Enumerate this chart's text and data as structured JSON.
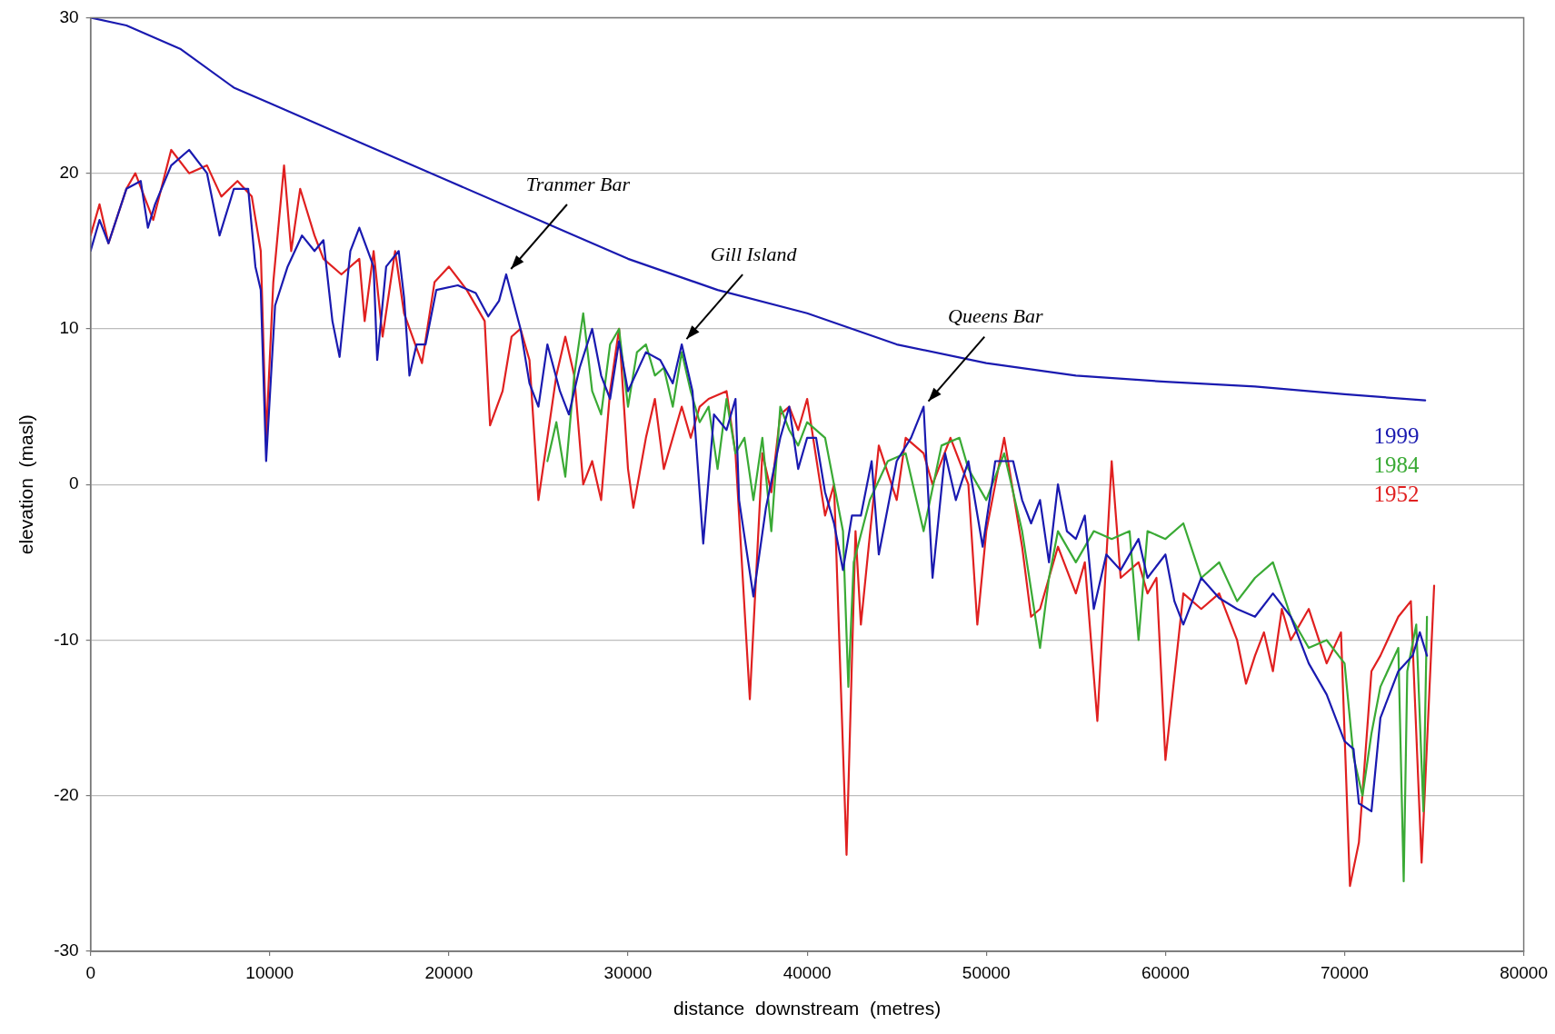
{
  "chart_data": {
    "type": "line",
    "xlabel": "distance  downstream  (metres)",
    "ylabel": "elevation  (masl)",
    "xlim": [
      0,
      80000
    ],
    "xticks": [
      0,
      10000,
      20000,
      30000,
      40000,
      50000,
      60000,
      70000,
      80000
    ],
    "ylim": [
      -30,
      30
    ],
    "yticks": [
      -30,
      -20,
      -10,
      0,
      10,
      20,
      30
    ],
    "grid": "y",
    "legend": false,
    "marker": "none",
    "line_style": "solid",
    "annotations": [
      {
        "text": "Tranmer Bar",
        "x": 23200,
        "y": 13.5
      },
      {
        "text": "Gill Island",
        "x": 33000,
        "y": 9
      },
      {
        "text": "Queens Bar",
        "x": 46500,
        "y": 5
      }
    ],
    "series": [
      {
        "color": "#1a1ab0",
        "x": [
          0,
          2000,
          5000,
          8000,
          10000,
          15000,
          20000,
          25000,
          30000,
          35000,
          40000,
          45000,
          50000,
          55000,
          60000,
          65000,
          70000,
          74500
        ],
        "values": [
          30,
          29.5,
          28,
          25.5,
          24.5,
          22,
          19.5,
          17,
          14.5,
          12.5,
          11,
          9,
          7.8,
          7,
          6.6,
          6.3,
          5.8,
          5.4
        ]
      },
      {
        "name": "1999",
        "color": "#1a1ab0",
        "x": [
          0,
          500,
          1000,
          2000,
          2800,
          3200,
          3600,
          4500,
          5500,
          6500,
          7200,
          8000,
          8800,
          9200,
          9500,
          9800,
          10300,
          11000,
          11800,
          12500,
          13000,
          13500,
          13900,
          14500,
          15000,
          15800,
          16000,
          16500,
          17200,
          17500,
          17800,
          18200,
          18700,
          19300,
          20500,
          21500,
          22200,
          22800,
          23200,
          24000,
          24500,
          25000,
          25500,
          26200,
          26700,
          27300,
          28000,
          28500,
          29000,
          29500,
          30000,
          31000,
          31800,
          32500,
          33000,
          33600,
          34200,
          34800,
          35500,
          36000,
          36200,
          37000,
          37700,
          38500,
          39000,
          39500,
          40000,
          40500,
          41000,
          41500,
          42000,
          42500,
          43000,
          43600,
          44000,
          45000,
          45800,
          46500,
          47000,
          47700,
          48300,
          49000,
          49800,
          50500,
          51500,
          52000,
          52500,
          53000,
          53500,
          54000,
          54500,
          55000,
          55500,
          56000,
          56700,
          57500,
          58500,
          59000,
          60000,
          60500,
          61000,
          62000,
          63000,
          64000,
          65000,
          66000,
          67000,
          68000,
          69000,
          70000,
          70500,
          70800,
          71500,
          72000,
          73000,
          73800,
          74200,
          74600
        ],
        "values": [
          15,
          17,
          15.5,
          19,
          19.5,
          16.5,
          18,
          20.5,
          21.5,
          20,
          16,
          19,
          19,
          14,
          12.5,
          1.5,
          11.5,
          14,
          16,
          15,
          15.7,
          10.5,
          8.2,
          15,
          16.5,
          14,
          8,
          14,
          15,
          12,
          7,
          9,
          9,
          12.5,
          12.8,
          12.3,
          10.8,
          11.8,
          13.5,
          10,
          6.5,
          5,
          9,
          6,
          4.5,
          7.5,
          10,
          7,
          5.5,
          9.2,
          6,
          8.5,
          8,
          6.5,
          9,
          6,
          -3.8,
          4.5,
          3.5,
          5.5,
          -1,
          -7.2,
          -1.5,
          3,
          5,
          1,
          3,
          3,
          -0.5,
          -2.5,
          -5.5,
          -2,
          -2,
          1.5,
          -4.5,
          1.5,
          3,
          5,
          -6,
          2,
          -1,
          1.5,
          -4,
          1.5,
          1.5,
          -1,
          -2.5,
          -1,
          -5,
          0,
          -3,
          -3.5,
          -2,
          -8,
          -4.5,
          -5.5,
          -3.5,
          -6,
          -4.5,
          -7.5,
          -9,
          -6,
          -7.3,
          -8,
          -8.5,
          -7,
          -8.5,
          -11.5,
          -13.5,
          -16.5,
          -17,
          -20.5,
          -21,
          -15,
          -12,
          -11,
          -9.5,
          -11
        ]
      },
      {
        "name": "1984",
        "color": "#3aaa35",
        "x": [
          25500,
          26000,
          26500,
          27000,
          27500,
          28000,
          28500,
          29000,
          29500,
          30000,
          30500,
          31000,
          31500,
          32000,
          32500,
          33000,
          33500,
          34000,
          34500,
          35000,
          35500,
          36000,
          36500,
          37000,
          37500,
          38000,
          38500,
          39000,
          39500,
          40000,
          41000,
          41500,
          42000,
          42300,
          42600,
          43500,
          44500,
          45500,
          46500,
          47500,
          48500,
          49000,
          50000,
          51000,
          52000,
          53000,
          53500,
          54000,
          55000,
          56000,
          57000,
          58000,
          58500,
          59000,
          60000,
          61000,
          62000,
          63000,
          64000,
          65000,
          66000,
          67000,
          68000,
          69000,
          70000,
          70500,
          71000,
          71500,
          72000,
          73000,
          73300,
          73500,
          74000,
          74400,
          74600
        ],
        "values": [
          1.5,
          4,
          0.5,
          7,
          11,
          6,
          4.5,
          9,
          10,
          5,
          8.5,
          9,
          7,
          7.5,
          5,
          8.5,
          6,
          4,
          5,
          1,
          5.5,
          2,
          3,
          -1,
          3,
          -3,
          5,
          3.5,
          2.5,
          4,
          3,
          0,
          -3,
          -13,
          -5,
          -1,
          1.5,
          2,
          -3,
          2.5,
          3,
          1,
          -1,
          2,
          -3,
          -10.5,
          -6,
          -3,
          -5,
          -3,
          -3.5,
          -3,
          -10,
          -3,
          -3.5,
          -2.5,
          -6,
          -5,
          -7.5,
          -6,
          -5,
          -8.5,
          -10.5,
          -10,
          -11.5,
          -17.5,
          -20,
          -16,
          -13,
          -10.5,
          -25.5,
          -12,
          -9,
          -21,
          -8.5
        ]
      },
      {
        "name": "1952",
        "color": "#e02020",
        "x": [
          0,
          500,
          1000,
          2000,
          2500,
          3500,
          4500,
          5500,
          6500,
          7300,
          8200,
          9000,
          9500,
          9800,
          10200,
          10800,
          11200,
          11700,
          12500,
          13000,
          14000,
          15000,
          15300,
          15800,
          16300,
          17000,
          17500,
          18500,
          19200,
          20000,
          21000,
          22000,
          22300,
          23000,
          23500,
          24000,
          24500,
          25000,
          25500,
          26000,
          26500,
          27000,
          27500,
          28000,
          28500,
          29000,
          29500,
          30000,
          30300,
          31000,
          31500,
          32000,
          33000,
          33500,
          34000,
          34500,
          35500,
          36000,
          36800,
          37500,
          38000,
          38500,
          39000,
          39500,
          40000,
          41000,
          41500,
          42200,
          42700,
          43000,
          44000,
          45000,
          45500,
          46500,
          47000,
          48000,
          49000,
          49500,
          50000,
          51000,
          52000,
          52500,
          53000,
          54000,
          55000,
          55500,
          56200,
          57000,
          57500,
          58500,
          59000,
          59500,
          60000,
          61000,
          62000,
          63000,
          64000,
          64500,
          65000,
          65500,
          66000,
          66500,
          67000,
          68000,
          69000,
          69800,
          70300,
          70800,
          71500,
          72000,
          73000,
          73700,
          74300,
          75000
        ],
        "values": [
          16,
          18,
          15.5,
          19,
          20,
          17,
          21.5,
          20,
          20.5,
          18.5,
          19.5,
          18.5,
          15,
          3,
          13,
          20.5,
          15,
          19,
          16,
          14.5,
          13.5,
          14.5,
          10.5,
          15,
          9.5,
          15,
          11,
          7.8,
          13,
          14,
          12.5,
          10.5,
          3.8,
          6,
          9.5,
          10,
          8,
          -1,
          3,
          7,
          9.5,
          7,
          0,
          1.5,
          -1,
          6,
          10,
          1,
          -1.5,
          3,
          5.5,
          1,
          5,
          3,
          5,
          5.5,
          6,
          2,
          -13.8,
          2,
          -0.5,
          4.5,
          5,
          3.5,
          5.5,
          -2,
          0,
          -23.8,
          -3,
          -9,
          2.5,
          -1,
          3,
          2,
          0,
          3,
          0,
          -9,
          -3,
          3,
          -4,
          -8.5,
          -8,
          -4,
          -7,
          -5,
          -15.2,
          1.5,
          -6,
          -5,
          -7,
          -6,
          -17.7,
          -7,
          -8,
          -7,
          -10,
          -12.8,
          -11,
          -9.5,
          -12,
          -8,
          -10,
          -8,
          -11.5,
          -9.5,
          -25.8,
          -23,
          -12,
          -11,
          -8.5,
          -7.5,
          -24.3,
          -6.5
        ]
      }
    ]
  }
}
